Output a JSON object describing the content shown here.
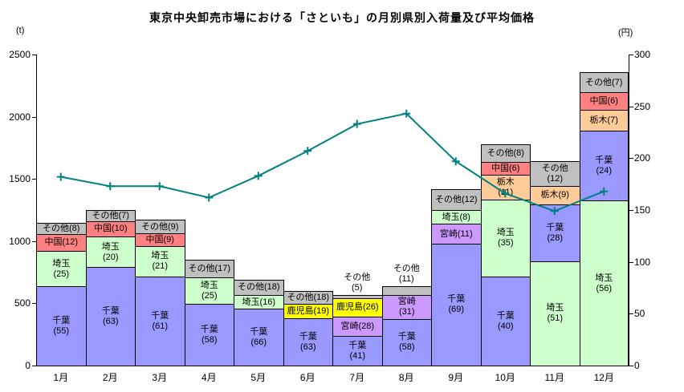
{
  "chart_data": {
    "type": "bar",
    "stacked": true,
    "title": "東京中央卸売市場における「さといも」の月別県別入荷量及び平均価格",
    "legend": "none",
    "grid": false,
    "categories": [
      "1月",
      "2月",
      "3月",
      "4月",
      "5月",
      "6月",
      "7月",
      "8月",
      "9月",
      "10月",
      "11月",
      "12月"
    ],
    "left_axis": {
      "unit": "(t)",
      "min": 0,
      "max": 2500,
      "step": 500,
      "ticks": [
        0,
        500,
        1000,
        1500,
        2000,
        2500
      ]
    },
    "right_axis": {
      "unit": "(円)",
      "min": 0,
      "max": 300,
      "step": 50,
      "ticks": [
        0,
        50,
        100,
        150,
        200,
        250,
        300
      ]
    },
    "palette": {
      "千葉": "#9999FF",
      "埼玉": "#CCFFCC",
      "中国": "#FF8080",
      "その他": "#C0C0C0",
      "鹿児島": "#FFFF00",
      "宮崎": "#CC99FF",
      "栃木": "#FFCC99"
    },
    "totals_t_estimated": [
      1150,
      1250,
      1170,
      850,
      690,
      600,
      570,
      640,
      1420,
      1780,
      1640,
      2360
    ],
    "bars": [
      {
        "month": "1月",
        "total": 1150,
        "segments": [
          {
            "name": "千葉",
            "pct": 55,
            "label_lines": 2
          },
          {
            "name": "埼玉",
            "pct": 25,
            "label_lines": 2
          },
          {
            "name": "中国",
            "pct": 12,
            "label_lines": 1
          },
          {
            "name": "その他",
            "pct": 8,
            "label_lines": 1
          }
        ]
      },
      {
        "month": "2月",
        "total": 1250,
        "segments": [
          {
            "name": "千葉",
            "pct": 63,
            "label_lines": 2
          },
          {
            "name": "埼玉",
            "pct": 20,
            "label_lines": 2
          },
          {
            "name": "中国",
            "pct": 10,
            "label_lines": 1
          },
          {
            "name": "その他",
            "pct": 7,
            "label_lines": 1
          }
        ]
      },
      {
        "month": "3月",
        "total": 1170,
        "segments": [
          {
            "name": "千葉",
            "pct": 61,
            "label_lines": 2
          },
          {
            "name": "埼玉",
            "pct": 21,
            "label_lines": 2
          },
          {
            "name": "中国",
            "pct": 9,
            "label_lines": 1
          },
          {
            "name": "その他",
            "pct": 9,
            "label_lines": 1
          }
        ]
      },
      {
        "month": "4月",
        "total": 850,
        "segments": [
          {
            "name": "千葉",
            "pct": 58,
            "label_lines": 2
          },
          {
            "name": "埼玉",
            "pct": 25,
            "label_lines": 2
          },
          {
            "name": "その他",
            "pct": 17,
            "label_lines": 1
          }
        ]
      },
      {
        "month": "5月",
        "total": 690,
        "segments": [
          {
            "name": "千葉",
            "pct": 66,
            "label_lines": 2
          },
          {
            "name": "埼玉",
            "pct": 16,
            "label_lines": 1
          },
          {
            "name": "その他",
            "pct": 18,
            "label_lines": 1
          }
        ]
      },
      {
        "month": "6月",
        "total": 600,
        "segments": [
          {
            "name": "千葉",
            "pct": 63,
            "label_lines": 2
          },
          {
            "name": "鹿児島",
            "pct": 19,
            "label_lines": 1
          },
          {
            "name": "その他",
            "pct": 18,
            "label_lines": 1
          }
        ]
      },
      {
        "month": "7月",
        "total": 570,
        "segments": [
          {
            "name": "千葉",
            "pct": 41,
            "label_lines": 2
          },
          {
            "name": "宮崎",
            "pct": 28,
            "label_lines": 1
          },
          {
            "name": "鹿児島",
            "pct": 26,
            "label_lines": 1
          },
          {
            "name": "その他",
            "pct": 5,
            "label_lines": 2,
            "label_outside": true
          }
        ]
      },
      {
        "month": "8月",
        "total": 640,
        "segments": [
          {
            "name": "千葉",
            "pct": 58,
            "label_lines": 2
          },
          {
            "name": "宮崎",
            "pct": 31,
            "label_lines": 2
          },
          {
            "name": "その他",
            "pct": 11,
            "label_lines": 2,
            "label_outside": true
          }
        ]
      },
      {
        "month": "9月",
        "total": 1420,
        "segments": [
          {
            "name": "千葉",
            "pct": 69,
            "label_lines": 2
          },
          {
            "name": "宮崎",
            "pct": 11,
            "label_lines": 1
          },
          {
            "name": "埼玉",
            "pct": 8,
            "label_lines": 1
          },
          {
            "name": "その他",
            "pct": 12,
            "label_lines": 1
          }
        ]
      },
      {
        "month": "10月",
        "total": 1780,
        "segments": [
          {
            "name": "千葉",
            "pct": 40,
            "label_lines": 2
          },
          {
            "name": "埼玉",
            "pct": 35,
            "label_lines": 2
          },
          {
            "name": "栃木",
            "pct": 11,
            "label_lines": 2
          },
          {
            "name": "中国",
            "pct": 6,
            "label_lines": 1
          },
          {
            "name": "その他",
            "pct": 8,
            "label_lines": 1
          }
        ]
      },
      {
        "month": "11月",
        "total": 1640,
        "segments": [
          {
            "name": "埼玉",
            "pct": 51,
            "label_lines": 2
          },
          {
            "name": "千葉",
            "pct": 28,
            "label_lines": 2
          },
          {
            "name": "栃木",
            "pct": 9,
            "label_lines": 1
          },
          {
            "name": "その他",
            "pct": 12,
            "label_lines": 2
          }
        ]
      },
      {
        "month": "12月",
        "total": 2360,
        "segments": [
          {
            "name": "埼玉",
            "pct": 56,
            "label_lines": 2
          },
          {
            "name": "千葉",
            "pct": 24,
            "label_lines": 2
          },
          {
            "name": "栃木",
            "pct": 7,
            "label_lines": 1
          },
          {
            "name": "中国",
            "pct": 6,
            "label_lines": 1
          },
          {
            "name": "その他",
            "pct": 7,
            "label_lines": 1
          }
        ]
      }
    ],
    "price_line": {
      "name": "平均価格",
      "color": "#008080",
      "axis": "right",
      "values_yen_estimated": [
        182,
        173,
        173,
        162,
        183,
        207,
        233,
        243,
        197,
        166,
        149,
        168
      ]
    }
  }
}
